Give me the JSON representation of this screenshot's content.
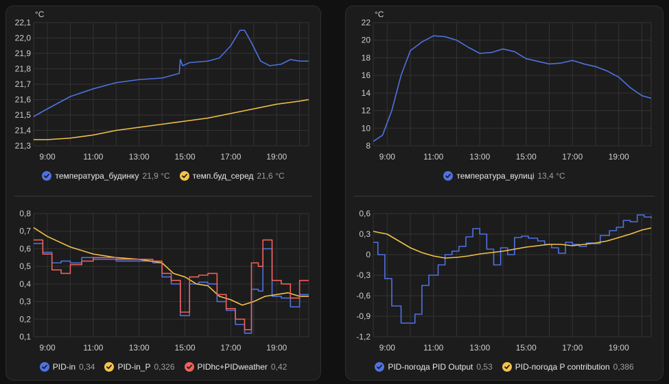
{
  "colors": {
    "blue": "#4f72e3",
    "yellow": "#f4c34a",
    "red": "#f0605a",
    "grid": "#333333"
  },
  "x_ticks": [
    "9:00",
    "11:00",
    "13:00",
    "15:00",
    "17:00",
    "19:00"
  ],
  "chart_data": [
    {
      "type": "line",
      "unit": "°C",
      "ylim": [
        21.3,
        22.1
      ],
      "y_ticks": [
        "21,3",
        "21,4",
        "21,5",
        "21,6",
        "21,7",
        "21,8",
        "21,9",
        "22,0",
        "22,1"
      ],
      "x_range": [
        8.4,
        20.4
      ],
      "x_ticks": [
        "9:00",
        "11:00",
        "13:00",
        "15:00",
        "17:00",
        "19:00"
      ],
      "series": [
        {
          "name": "температура_будинку",
          "value": "21,9 °C",
          "color": "#4f72e3",
          "points": [
            [
              8.4,
              21.49
            ],
            [
              9.0,
              21.54
            ],
            [
              10.0,
              21.62
            ],
            [
              11.0,
              21.67
            ],
            [
              12.0,
              21.71
            ],
            [
              13.0,
              21.73
            ],
            [
              14.0,
              21.74
            ],
            [
              14.75,
              21.77
            ],
            [
              14.8,
              21.86
            ],
            [
              14.9,
              21.82
            ],
            [
              15.2,
              21.84
            ],
            [
              16.0,
              21.85
            ],
            [
              16.5,
              21.87
            ],
            [
              17.0,
              21.95
            ],
            [
              17.4,
              22.05
            ],
            [
              17.6,
              22.05
            ],
            [
              17.9,
              21.97
            ],
            [
              18.3,
              21.85
            ],
            [
              18.7,
              21.82
            ],
            [
              19.2,
              21.83
            ],
            [
              19.6,
              21.86
            ],
            [
              20.0,
              21.85
            ],
            [
              20.4,
              21.85
            ]
          ],
          "step": false
        },
        {
          "name": "темп.буд_серед",
          "value": "21,6 °C",
          "color": "#f4c34a",
          "points": [
            [
              8.4,
              21.34
            ],
            [
              9.0,
              21.34
            ],
            [
              10.0,
              21.35
            ],
            [
              11.0,
              21.37
            ],
            [
              12.0,
              21.4
            ],
            [
              13.0,
              21.42
            ],
            [
              14.0,
              21.44
            ],
            [
              15.0,
              21.46
            ],
            [
              16.0,
              21.48
            ],
            [
              17.0,
              21.51
            ],
            [
              18.0,
              21.54
            ],
            [
              19.0,
              21.57
            ],
            [
              20.0,
              21.59
            ],
            [
              20.4,
              21.6
            ]
          ],
          "step": false
        }
      ]
    },
    {
      "type": "line",
      "unit": "°C",
      "ylim": [
        8,
        22
      ],
      "y_ticks": [
        "8",
        "10",
        "12",
        "14",
        "16",
        "18",
        "20",
        "22"
      ],
      "x_range": [
        8.4,
        20.4
      ],
      "x_ticks": [
        "9:00",
        "11:00",
        "13:00",
        "15:00",
        "17:00",
        "19:00"
      ],
      "series": [
        {
          "name": "температура_вулиці",
          "value": "13,4 °C",
          "color": "#4f72e3",
          "points": [
            [
              8.4,
              8.5
            ],
            [
              8.8,
              9.2
            ],
            [
              9.2,
              12.0
            ],
            [
              9.6,
              16.0
            ],
            [
              10.0,
              18.8
            ],
            [
              10.5,
              19.8
            ],
            [
              11.0,
              20.5
            ],
            [
              11.5,
              20.4
            ],
            [
              12.0,
              20.0
            ],
            [
              12.5,
              19.2
            ],
            [
              13.0,
              18.5
            ],
            [
              13.5,
              18.6
            ],
            [
              14.0,
              19.0
            ],
            [
              14.5,
              18.7
            ],
            [
              15.0,
              17.9
            ],
            [
              15.5,
              17.6
            ],
            [
              16.0,
              17.3
            ],
            [
              16.5,
              17.4
            ],
            [
              17.0,
              17.7
            ],
            [
              17.5,
              17.3
            ],
            [
              18.0,
              17.0
            ],
            [
              18.5,
              16.5
            ],
            [
              19.0,
              15.8
            ],
            [
              19.5,
              14.6
            ],
            [
              20.0,
              13.7
            ],
            [
              20.4,
              13.4
            ]
          ],
          "step": false
        }
      ]
    },
    {
      "type": "line",
      "unit": "",
      "ylim": [
        0.1,
        0.8
      ],
      "y_ticks": [
        "0,1",
        "0,2",
        "0,3",
        "0,4",
        "0,5",
        "0,6",
        "0,7",
        "0,8"
      ],
      "x_range": [
        8.4,
        20.4
      ],
      "x_ticks": [
        "9:00",
        "11:00",
        "13:00",
        "15:00",
        "17:00",
        "19:00"
      ],
      "series": [
        {
          "name": "PID-in",
          "value": "0,34",
          "color": "#4f72e3",
          "points": [
            [
              8.4,
              0.63
            ],
            [
              8.8,
              0.58
            ],
            [
              9.2,
              0.52
            ],
            [
              9.6,
              0.53
            ],
            [
              10.0,
              0.52
            ],
            [
              10.5,
              0.55
            ],
            [
              11.0,
              0.54
            ],
            [
              12.0,
              0.53
            ],
            [
              13.0,
              0.53
            ],
            [
              13.6,
              0.52
            ],
            [
              14.0,
              0.44
            ],
            [
              14.4,
              0.4
            ],
            [
              14.8,
              0.22
            ],
            [
              15.2,
              0.4
            ],
            [
              15.6,
              0.41
            ],
            [
              16.0,
              0.4
            ],
            [
              16.4,
              0.3
            ],
            [
              16.8,
              0.25
            ],
            [
              17.2,
              0.17
            ],
            [
              17.6,
              0.12
            ],
            [
              17.9,
              0.37
            ],
            [
              18.2,
              0.36
            ],
            [
              18.4,
              0.6
            ],
            [
              18.8,
              0.33
            ],
            [
              19.2,
              0.32
            ],
            [
              19.6,
              0.27
            ],
            [
              20.0,
              0.34
            ],
            [
              20.4,
              0.34
            ]
          ],
          "step": true
        },
        {
          "name": "PID-in_P",
          "value": "0,326",
          "color": "#f4c34a",
          "points": [
            [
              8.4,
              0.72
            ],
            [
              9.0,
              0.67
            ],
            [
              10.0,
              0.61
            ],
            [
              11.0,
              0.57
            ],
            [
              12.0,
              0.55
            ],
            [
              13.0,
              0.54
            ],
            [
              14.0,
              0.52
            ],
            [
              14.5,
              0.46
            ],
            [
              15.0,
              0.44
            ],
            [
              15.5,
              0.4
            ],
            [
              16.0,
              0.39
            ],
            [
              16.5,
              0.33
            ],
            [
              17.0,
              0.31
            ],
            [
              17.5,
              0.28
            ],
            [
              18.0,
              0.3
            ],
            [
              18.5,
              0.33
            ],
            [
              19.0,
              0.34
            ],
            [
              19.5,
              0.35
            ],
            [
              20.0,
              0.33
            ],
            [
              20.4,
              0.33
            ]
          ],
          "step": false
        },
        {
          "name": "PIDhc+PIDweather",
          "value": "0,42",
          "color": "#f0605a",
          "points": [
            [
              8.4,
              0.65
            ],
            [
              8.8,
              0.57
            ],
            [
              9.2,
              0.48
            ],
            [
              9.6,
              0.46
            ],
            [
              10.0,
              0.51
            ],
            [
              10.5,
              0.53
            ],
            [
              11.0,
              0.55
            ],
            [
              12.0,
              0.54
            ],
            [
              13.0,
              0.54
            ],
            [
              13.6,
              0.53
            ],
            [
              14.0,
              0.46
            ],
            [
              14.4,
              0.42
            ],
            [
              14.8,
              0.24
            ],
            [
              15.2,
              0.44
            ],
            [
              15.6,
              0.45
            ],
            [
              16.0,
              0.46
            ],
            [
              16.4,
              0.34
            ],
            [
              16.8,
              0.26
            ],
            [
              17.2,
              0.2
            ],
            [
              17.6,
              0.14
            ],
            [
              17.9,
              0.52
            ],
            [
              18.2,
              0.5
            ],
            [
              18.4,
              0.65
            ],
            [
              18.8,
              0.42
            ],
            [
              19.2,
              0.4
            ],
            [
              19.6,
              0.32
            ],
            [
              20.0,
              0.42
            ],
            [
              20.4,
              0.42
            ]
          ],
          "step": true
        }
      ]
    },
    {
      "type": "line",
      "unit": "",
      "ylim": [
        -1.2,
        0.6
      ],
      "y_ticks": [
        "-1,2",
        "-0,9",
        "-0,6",
        "-0,3",
        "0",
        "0,3",
        "0,6"
      ],
      "x_range": [
        8.4,
        20.4
      ],
      "x_ticks": [
        "9:00",
        "11:00",
        "13:00",
        "15:00",
        "17:00",
        "19:00"
      ],
      "series": [
        {
          "name": "PID-погода PID Output",
          "value": "0,53",
          "color": "#4f72e3",
          "points": [
            [
              8.4,
              0.18
            ],
            [
              8.6,
              0.0
            ],
            [
              8.9,
              -0.35
            ],
            [
              9.2,
              -0.75
            ],
            [
              9.6,
              -1.0
            ],
            [
              10.0,
              -1.0
            ],
            [
              10.2,
              -0.87
            ],
            [
              10.5,
              -0.45
            ],
            [
              10.8,
              -0.3
            ],
            [
              11.2,
              -0.15
            ],
            [
              11.5,
              0.0
            ],
            [
              11.8,
              0.05
            ],
            [
              12.1,
              0.12
            ],
            [
              12.4,
              0.26
            ],
            [
              12.7,
              0.38
            ],
            [
              13.0,
              0.3
            ],
            [
              13.3,
              0.08
            ],
            [
              13.6,
              -0.15
            ],
            [
              13.9,
              0.1
            ],
            [
              14.2,
              0.0
            ],
            [
              14.5,
              0.25
            ],
            [
              14.8,
              0.27
            ],
            [
              15.1,
              0.24
            ],
            [
              15.5,
              0.2
            ],
            [
              15.8,
              0.15
            ],
            [
              16.1,
              0.1
            ],
            [
              16.4,
              0.02
            ],
            [
              16.7,
              0.18
            ],
            [
              17.0,
              0.15
            ],
            [
              17.3,
              0.12
            ],
            [
              17.6,
              0.17
            ],
            [
              17.9,
              0.16
            ],
            [
              18.2,
              0.28
            ],
            [
              18.6,
              0.35
            ],
            [
              18.9,
              0.4
            ],
            [
              19.2,
              0.5
            ],
            [
              19.5,
              0.48
            ],
            [
              19.8,
              0.58
            ],
            [
              20.1,
              0.55
            ],
            [
              20.4,
              0.53
            ]
          ],
          "step": true
        },
        {
          "name": "PID-погода P contribution",
          "value": "0,386",
          "color": "#f4c34a",
          "points": [
            [
              8.4,
              0.34
            ],
            [
              9.0,
              0.3
            ],
            [
              9.5,
              0.2
            ],
            [
              10.0,
              0.1
            ],
            [
              10.5,
              0.03
            ],
            [
              11.0,
              -0.02
            ],
            [
              11.5,
              -0.05
            ],
            [
              12.0,
              -0.04
            ],
            [
              12.5,
              -0.02
            ],
            [
              13.0,
              0.01
            ],
            [
              13.5,
              0.03
            ],
            [
              14.0,
              0.05
            ],
            [
              14.5,
              0.08
            ],
            [
              15.0,
              0.11
            ],
            [
              15.5,
              0.13
            ],
            [
              16.0,
              0.15
            ],
            [
              16.5,
              0.15
            ],
            [
              17.0,
              0.13
            ],
            [
              17.5,
              0.15
            ],
            [
              18.0,
              0.17
            ],
            [
              18.5,
              0.2
            ],
            [
              19.0,
              0.25
            ],
            [
              19.5,
              0.3
            ],
            [
              20.0,
              0.36
            ],
            [
              20.4,
              0.39
            ]
          ],
          "step": false
        }
      ]
    }
  ]
}
